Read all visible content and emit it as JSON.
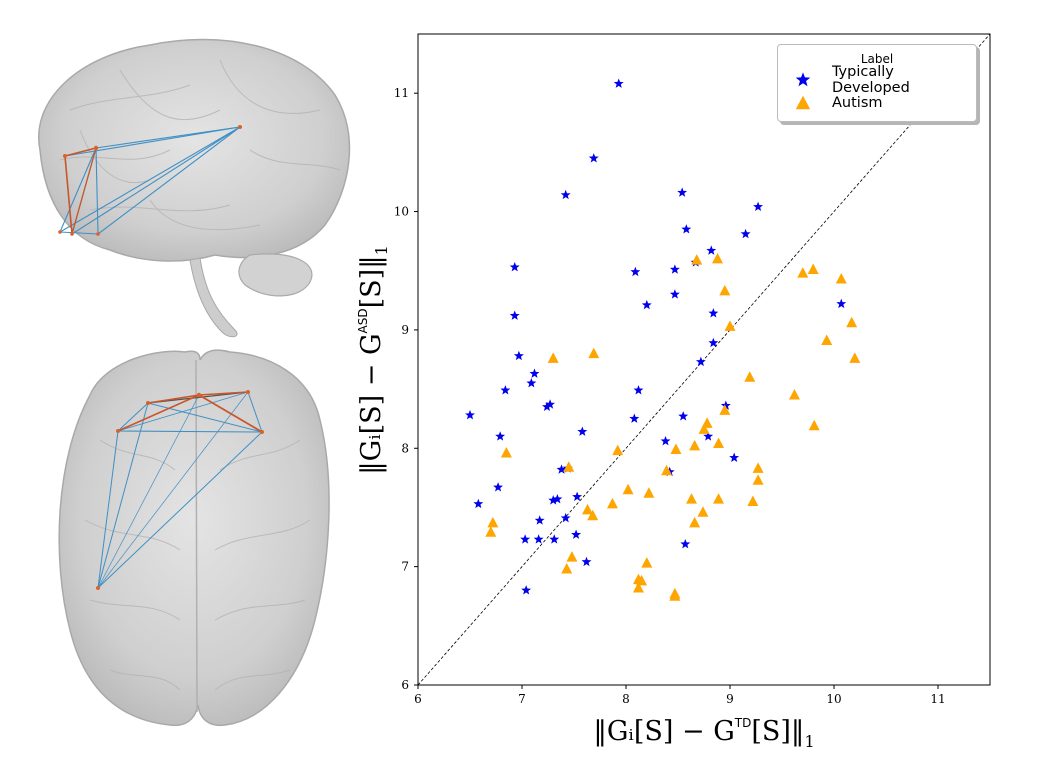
{
  "colors": {
    "td": "#0000ee",
    "asd": "#ffa500",
    "edge_blue": "#3f8fc4",
    "edge_orange": "#c8562a",
    "node": "#d9622c"
  },
  "legend": {
    "title": "Label",
    "td": "Typically Developed",
    "asd": "Autism"
  },
  "axes": {
    "x_label": "‖G_i[S] − G^TD[S]‖₁",
    "y_label": "‖G_i[S] − G^ASD[S]‖₁",
    "x_label_parts": {
      "main": "‖Gᵢ[S] − G",
      "sup": "TD",
      "tail": "[S]‖",
      "sub": "1"
    },
    "y_label_parts": {
      "main": "‖Gᵢ[S] − G",
      "sup": "ASD",
      "tail": "[S]‖",
      "sub": "1"
    }
  },
  "chart_data": {
    "type": "scatter",
    "xlim": [
      6,
      11.5
    ],
    "ylim": [
      6,
      11.5
    ],
    "x_ticks": [
      6,
      7,
      8,
      9,
      10,
      11
    ],
    "y_ticks": [
      6,
      7,
      8,
      9,
      10,
      11
    ],
    "grid": false,
    "legend_position": "top-right",
    "reference_line": "y = x (dashed)",
    "series": [
      {
        "name": "Typically Developed",
        "marker": "star",
        "points": [
          [
            7.93,
            11.08
          ],
          [
            7.69,
            10.45
          ],
          [
            7.42,
            10.14
          ],
          [
            8.54,
            10.16
          ],
          [
            9.27,
            10.04
          ],
          [
            6.93,
            9.53
          ],
          [
            8.09,
            9.49
          ],
          [
            8.47,
            9.51
          ],
          [
            8.58,
            9.85
          ],
          [
            8.82,
            9.67
          ],
          [
            9.15,
            9.81
          ],
          [
            8.67,
            9.57
          ],
          [
            6.93,
            9.12
          ],
          [
            8.2,
            9.21
          ],
          [
            8.47,
            9.3
          ],
          [
            8.84,
            9.14
          ],
          [
            10.07,
            9.22
          ],
          [
            6.97,
            8.78
          ],
          [
            6.84,
            8.49
          ],
          [
            7.09,
            8.55
          ],
          [
            7.12,
            8.63
          ],
          [
            8.12,
            8.49
          ],
          [
            7.27,
            8.37
          ],
          [
            7.24,
            8.35
          ],
          [
            6.5,
            8.28
          ],
          [
            8.08,
            8.25
          ],
          [
            8.55,
            8.27
          ],
          [
            8.72,
            8.73
          ],
          [
            8.84,
            8.89
          ],
          [
            8.96,
            8.36
          ],
          [
            8.79,
            8.1
          ],
          [
            6.79,
            8.1
          ],
          [
            7.58,
            8.14
          ],
          [
            7.38,
            7.82
          ],
          [
            8.38,
            8.06
          ],
          [
            7.44,
            7.83
          ],
          [
            6.77,
            7.67
          ],
          [
            9.04,
            7.92
          ],
          [
            8.42,
            7.8
          ],
          [
            6.58,
            7.53
          ],
          [
            7.3,
            7.56
          ],
          [
            7.34,
            7.57
          ],
          [
            7.53,
            7.59
          ],
          [
            7.42,
            7.41
          ],
          [
            7.17,
            7.39
          ],
          [
            7.52,
            7.27
          ],
          [
            7.03,
            7.23
          ],
          [
            7.16,
            7.23
          ],
          [
            7.31,
            7.23
          ],
          [
            8.57,
            7.19
          ],
          [
            7.62,
            7.04
          ],
          [
            7.04,
            6.8
          ]
        ]
      },
      {
        "name": "Autism",
        "marker": "triangle",
        "points": [
          [
            9.8,
            9.51
          ],
          [
            9.7,
            9.48
          ],
          [
            10.07,
            9.43
          ],
          [
            8.68,
            9.59
          ],
          [
            8.88,
            9.6
          ],
          [
            8.95,
            9.33
          ],
          [
            10.17,
            9.06
          ],
          [
            9.93,
            8.91
          ],
          [
            9.0,
            9.03
          ],
          [
            10.2,
            8.76
          ],
          [
            7.3,
            8.76
          ],
          [
            7.69,
            8.8
          ],
          [
            9.19,
            8.6
          ],
          [
            9.62,
            8.45
          ],
          [
            9.81,
            8.19
          ],
          [
            8.95,
            8.32
          ],
          [
            8.78,
            8.21
          ],
          [
            8.75,
            8.16
          ],
          [
            8.89,
            8.04
          ],
          [
            8.66,
            8.02
          ],
          [
            8.48,
            7.99
          ],
          [
            6.85,
            7.96
          ],
          [
            7.92,
            7.98
          ],
          [
            7.45,
            7.84
          ],
          [
            9.27,
            7.83
          ],
          [
            8.39,
            7.81
          ],
          [
            9.27,
            7.73
          ],
          [
            8.02,
            7.65
          ],
          [
            8.22,
            7.62
          ],
          [
            8.63,
            7.57
          ],
          [
            8.89,
            7.57
          ],
          [
            9.22,
            7.55
          ],
          [
            7.87,
            7.53
          ],
          [
            7.63,
            7.48
          ],
          [
            7.68,
            7.43
          ],
          [
            8.74,
            7.46
          ],
          [
            6.72,
            7.37
          ],
          [
            8.66,
            7.37
          ],
          [
            6.7,
            7.29
          ],
          [
            7.48,
            7.08
          ],
          [
            8.2,
            7.03
          ],
          [
            7.43,
            6.98
          ],
          [
            8.12,
            6.89
          ],
          [
            8.15,
            6.88
          ],
          [
            8.12,
            6.82
          ],
          [
            8.47,
            6.77
          ],
          [
            8.47,
            6.75
          ]
        ]
      }
    ]
  }
}
